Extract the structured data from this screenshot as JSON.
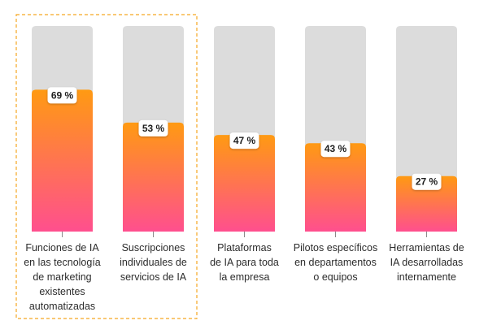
{
  "chart_data": {
    "type": "bar",
    "categories": [
      "Funciones de IA\nen las tecnología\nde marketing\nexistentes\nautomatizadas",
      "Suscripciones\nindividuales de\nservicios de IA",
      "Plataformas\nde IA para toda\nla empresa",
      "Pilotos específicos\nen departamentos\no equipos",
      "Herramientas de\nIA desarrolladas\ninternamente"
    ],
    "values": [
      69,
      53,
      47,
      43,
      27
    ],
    "value_labels": [
      "69 %",
      "53 %",
      "47 %",
      "43 %",
      "27 %"
    ],
    "ylim": [
      0,
      100
    ],
    "highlighted_index": 0,
    "grid": false,
    "colors": {
      "track": "#dcdcdc",
      "gradient_top": "#ff9a12",
      "gradient_bottom": "#ff4f8e",
      "highlight_border": "#f5a623",
      "tick": "#8a8a8a"
    }
  }
}
